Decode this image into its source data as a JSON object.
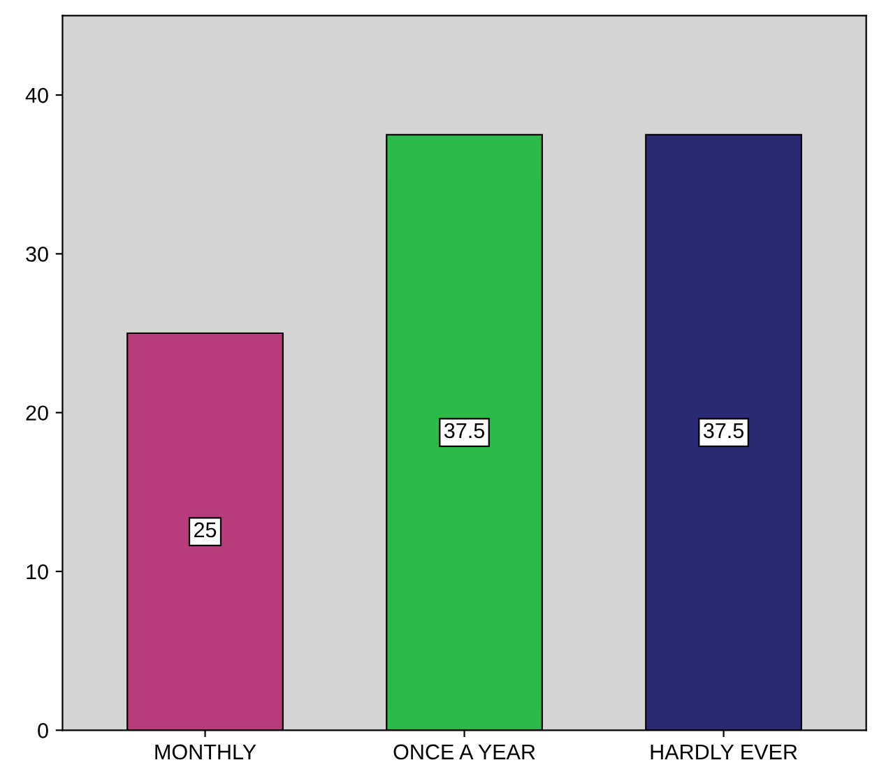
{
  "chart_data": {
    "type": "bar",
    "categories": [
      "MONTHLY",
      "ONCE A YEAR",
      "HARDLY EVER"
    ],
    "values": [
      25,
      37.5,
      37.5
    ],
    "colors": [
      "#b83b7c",
      "#2db84a",
      "#2a2a75"
    ],
    "ylim": [
      0,
      45
    ],
    "yticks": [
      0,
      10,
      20,
      30,
      40
    ],
    "data_labels": true,
    "grid": false
  }
}
